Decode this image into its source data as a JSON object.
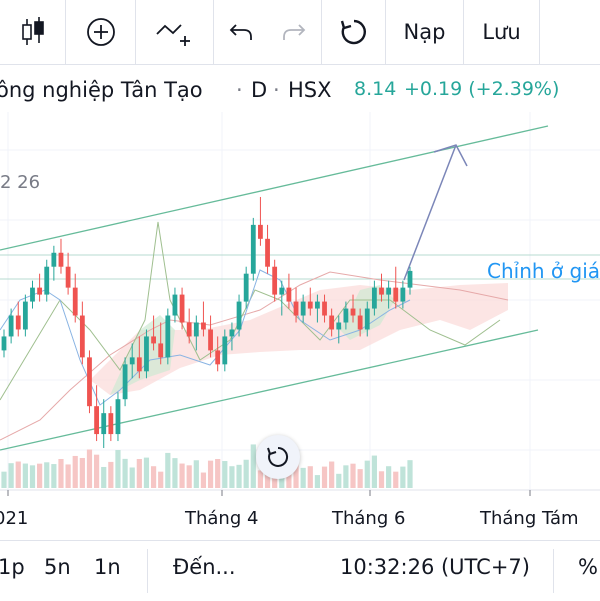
{
  "toolbar": {
    "candles_icon": "candlestick-chart-icon",
    "add_icon": "plus-circle-icon",
    "indicator_icon": "add-indicator-icon",
    "undo_icon": "undo-icon",
    "redo_icon": "redo-icon",
    "refresh_icon": "refresh-icon",
    "load_label": "Nạp",
    "save_label": "Lưu"
  },
  "symbol": {
    "name": "ông nghiệp Tân Tạo",
    "sep1": "·",
    "interval": "D",
    "sep2": "·",
    "exchange": "HSX",
    "price": "8.14",
    "change": "+0.19 (+2.39%)",
    "change_color": "#26a69a"
  },
  "chart": {
    "side_value": "2 26",
    "annotation": "Chỉnh ở giá",
    "x_axis": [
      "021",
      "Tháng 4",
      "Tháng 6",
      "Tháng Tám"
    ],
    "reset_icon": "reset-chart-icon",
    "colors": {
      "up": "#26a69a",
      "down": "#ef5350",
      "channel": "#66bb9a",
      "arrow": "#7b86b8",
      "annotation": "#2196f3"
    }
  },
  "bottom": {
    "range_1d": "1p",
    "range_5d": "5n",
    "range_1y": "1n",
    "goto": "Đến...",
    "time": "10:32:26 (UTC+7)",
    "percent": "%"
  },
  "chart_data": {
    "type": "candlestick",
    "x_ticks": [
      "021",
      "Tháng 4",
      "Tháng 6",
      "Tháng Tám"
    ],
    "last_price": 8.14,
    "change": 0.19,
    "change_pct": 2.39,
    "candles": [
      [
        7.0,
        7.3,
        6.9,
        7.2
      ],
      [
        7.2,
        7.6,
        7.1,
        7.5
      ],
      [
        7.5,
        7.7,
        7.2,
        7.3
      ],
      [
        7.3,
        7.8,
        7.2,
        7.7
      ],
      [
        7.7,
        8.0,
        7.6,
        7.9
      ],
      [
        7.9,
        8.1,
        7.7,
        7.8
      ],
      [
        7.8,
        8.3,
        7.7,
        8.2
      ],
      [
        8.2,
        8.5,
        8.0,
        8.4
      ],
      [
        8.4,
        8.6,
        8.1,
        8.2
      ],
      [
        8.2,
        8.4,
        7.8,
        7.9
      ],
      [
        7.9,
        8.1,
        7.4,
        7.5
      ],
      [
        7.5,
        7.7,
        6.8,
        6.9
      ],
      [
        6.9,
        7.0,
        6.1,
        6.2
      ],
      [
        6.2,
        6.5,
        5.7,
        5.8
      ],
      [
        5.8,
        6.3,
        5.6,
        6.1
      ],
      [
        6.1,
        6.2,
        5.7,
        5.8
      ],
      [
        5.8,
        6.4,
        5.7,
        6.3
      ],
      [
        6.3,
        6.9,
        6.2,
        6.8
      ],
      [
        6.8,
        7.1,
        6.6,
        6.9
      ],
      [
        6.9,
        7.2,
        6.6,
        6.7
      ],
      [
        6.7,
        7.3,
        6.6,
        7.2
      ],
      [
        7.2,
        7.5,
        7.0,
        7.1
      ],
      [
        7.1,
        7.4,
        6.8,
        6.9
      ],
      [
        6.9,
        7.6,
        6.8,
        7.5
      ],
      [
        7.5,
        7.9,
        7.4,
        7.8
      ],
      [
        7.8,
        7.9,
        7.3,
        7.4
      ],
      [
        7.4,
        7.6,
        7.1,
        7.2
      ],
      [
        7.2,
        7.5,
        7.0,
        7.4
      ],
      [
        7.4,
        7.7,
        7.2,
        7.3
      ],
      [
        7.3,
        7.5,
        6.9,
        7.0
      ],
      [
        7.0,
        7.2,
        6.7,
        6.8
      ],
      [
        6.8,
        7.3,
        6.7,
        7.2
      ],
      [
        7.2,
        7.4,
        7.0,
        7.3
      ],
      [
        7.3,
        7.8,
        7.2,
        7.7
      ],
      [
        7.7,
        8.2,
        7.6,
        8.1
      ],
      [
        8.1,
        8.9,
        8.0,
        8.8
      ],
      [
        8.8,
        9.2,
        8.5,
        8.6
      ],
      [
        8.6,
        8.8,
        8.1,
        8.2
      ],
      [
        8.2,
        8.3,
        7.7,
        7.8
      ],
      [
        7.8,
        8.0,
        7.5,
        7.9
      ],
      [
        7.9,
        8.1,
        7.6,
        7.7
      ],
      [
        7.7,
        7.9,
        7.4,
        7.5
      ],
      [
        7.5,
        7.8,
        7.4,
        7.7
      ],
      [
        7.7,
        7.9,
        7.5,
        7.6
      ],
      [
        7.6,
        7.8,
        7.4,
        7.7
      ],
      [
        7.7,
        7.8,
        7.4,
        7.5
      ],
      [
        7.5,
        7.6,
        7.2,
        7.3
      ],
      [
        7.3,
        7.5,
        7.1,
        7.4
      ],
      [
        7.4,
        7.7,
        7.3,
        7.6
      ],
      [
        7.6,
        7.8,
        7.4,
        7.5
      ],
      [
        7.5,
        7.6,
        7.2,
        7.3
      ],
      [
        7.3,
        7.7,
        7.2,
        7.6
      ],
      [
        7.6,
        8.0,
        7.5,
        7.9
      ],
      [
        7.9,
        8.1,
        7.7,
        7.8
      ],
      [
        7.8,
        8.0,
        7.6,
        7.9
      ],
      [
        7.9,
        8.2,
        7.6,
        7.7
      ],
      [
        7.7,
        8.0,
        7.6,
        7.9
      ],
      [
        7.9,
        8.2,
        7.8,
        8.14
      ]
    ]
  }
}
